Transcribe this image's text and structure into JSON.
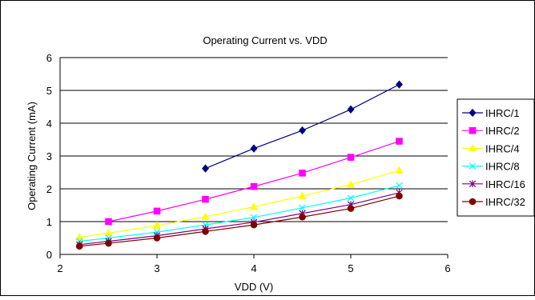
{
  "chart_data": {
    "type": "line",
    "title": "Operating Current vs. VDD",
    "xlabel": "VDD (V)",
    "ylabel": "Operating Current (mA)",
    "xlim": [
      2,
      6
    ],
    "ylim": [
      0,
      6
    ],
    "xticks": [
      2,
      3,
      4,
      5,
      6
    ],
    "yticks": [
      0,
      1,
      2,
      3,
      4,
      5,
      6
    ],
    "grid": "horizontal",
    "legend_position": "right",
    "series": [
      {
        "name": "IHRC/1",
        "color": "#000080",
        "marker": "diamond",
        "x": [
          3.5,
          4.0,
          4.5,
          5.0,
          5.5
        ],
        "y": [
          2.62,
          3.23,
          3.78,
          4.42,
          5.18
        ]
      },
      {
        "name": "IHRC/2",
        "color": "#ff00ff",
        "marker": "square",
        "x": [
          2.5,
          3.0,
          3.5,
          4.0,
          4.5,
          5.0,
          5.5
        ],
        "y": [
          1.0,
          1.32,
          1.68,
          2.07,
          2.48,
          2.96,
          3.45
        ]
      },
      {
        "name": "IHRC/4",
        "color": "#ffff00",
        "marker": "triangle",
        "x": [
          2.2,
          2.5,
          3.0,
          3.5,
          4.0,
          4.5,
          5.0,
          5.5
        ],
        "y": [
          0.52,
          0.65,
          0.88,
          1.15,
          1.45,
          1.78,
          2.13,
          2.56
        ]
      },
      {
        "name": "IHRC/8",
        "color": "#00ffff",
        "marker": "x",
        "x": [
          2.2,
          2.5,
          3.0,
          3.5,
          4.0,
          4.5,
          5.0,
          5.5
        ],
        "y": [
          0.4,
          0.5,
          0.68,
          0.9,
          1.13,
          1.42,
          1.72,
          2.1
        ]
      },
      {
        "name": "IHRC/16",
        "color": "#800080",
        "marker": "star",
        "x": [
          2.2,
          2.5,
          3.0,
          3.5,
          4.0,
          4.5,
          5.0,
          5.5
        ],
        "y": [
          0.3,
          0.4,
          0.57,
          0.78,
          0.98,
          1.25,
          1.52,
          1.88
        ]
      },
      {
        "name": "IHRC/32",
        "color": "#800000",
        "marker": "circle",
        "x": [
          2.2,
          2.5,
          3.0,
          3.5,
          4.0,
          4.5,
          5.0,
          5.5
        ],
        "y": [
          0.25,
          0.34,
          0.5,
          0.7,
          0.9,
          1.14,
          1.4,
          1.78
        ]
      }
    ]
  }
}
